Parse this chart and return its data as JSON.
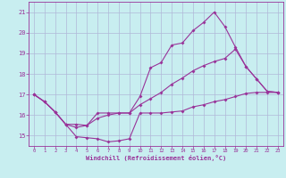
{
  "xlabel": "Windchill (Refroidissement éolien,°C)",
  "background_color": "#c8eef0",
  "grid_color": "#b0b8d8",
  "line_color": "#993399",
  "xlim": [
    -0.5,
    23.5
  ],
  "ylim": [
    14.5,
    21.5
  ],
  "yticks": [
    15,
    16,
    17,
    18,
    19,
    20,
    21
  ],
  "xticks": [
    0,
    1,
    2,
    3,
    4,
    5,
    6,
    7,
    8,
    9,
    10,
    11,
    12,
    13,
    14,
    15,
    16,
    17,
    18,
    19,
    20,
    21,
    22,
    23
  ],
  "line1_x": [
    0,
    1,
    2,
    3,
    4,
    5,
    6,
    7,
    8,
    9,
    10,
    11,
    12,
    13,
    14,
    15,
    16,
    17,
    18,
    19,
    20,
    21,
    22,
    23
  ],
  "line1_y": [
    17.0,
    16.65,
    16.15,
    15.55,
    14.95,
    14.9,
    14.85,
    14.7,
    14.75,
    14.85,
    16.1,
    16.1,
    16.1,
    16.15,
    16.2,
    16.4,
    16.5,
    16.65,
    16.75,
    16.9,
    17.05,
    17.1,
    17.1,
    17.1
  ],
  "line2_x": [
    0,
    1,
    2,
    3,
    4,
    5,
    6,
    7,
    8,
    9,
    10,
    11,
    12,
    13,
    14,
    15,
    16,
    17,
    18,
    19,
    20,
    21,
    22,
    23
  ],
  "line2_y": [
    17.0,
    16.65,
    16.15,
    15.55,
    15.4,
    15.5,
    16.1,
    16.1,
    16.1,
    16.1,
    16.9,
    18.3,
    18.55,
    19.4,
    19.5,
    20.1,
    20.5,
    21.0,
    20.3,
    19.3,
    18.35,
    17.75,
    17.15,
    17.1
  ],
  "line3_x": [
    0,
    1,
    2,
    3,
    4,
    5,
    6,
    7,
    8,
    9,
    10,
    11,
    12,
    13,
    14,
    15,
    16,
    17,
    18,
    19,
    20,
    21,
    22,
    23
  ],
  "line3_y": [
    17.0,
    16.65,
    16.15,
    15.55,
    15.55,
    15.5,
    15.85,
    16.0,
    16.1,
    16.1,
    16.5,
    16.8,
    17.1,
    17.5,
    17.8,
    18.15,
    18.4,
    18.6,
    18.75,
    19.2,
    18.35,
    17.75,
    17.15,
    17.1
  ]
}
